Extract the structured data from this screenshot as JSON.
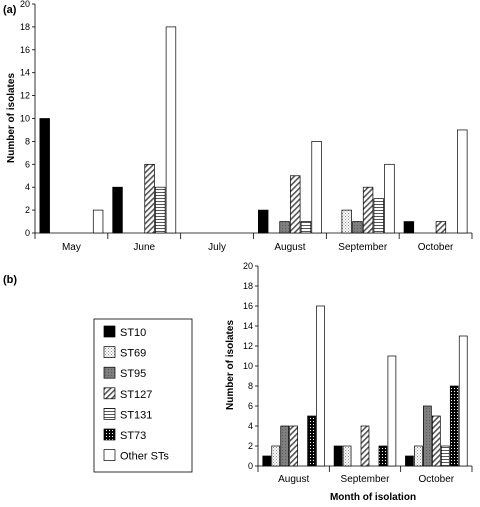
{
  "panel_a": {
    "label": "(a)",
    "ylabel": "Number of isolates",
    "ytick_labels": [
      "0",
      "2",
      "4",
      "6",
      "8",
      "10",
      "12",
      "14",
      "16",
      "18",
      "20"
    ],
    "categories": [
      "May",
      "June",
      "July",
      "August",
      "September",
      "October"
    ]
  },
  "panel_b": {
    "label": "(b)",
    "ylabel": "Number of isolates",
    "xlabel": "Month of isolation",
    "ytick_labels": [
      "0",
      "2",
      "4",
      "6",
      "8",
      "10",
      "12",
      "14",
      "16",
      "18",
      "20"
    ],
    "categories": [
      "August",
      "September",
      "October"
    ]
  },
  "legend": {
    "placement": "left of panel (b)",
    "entries": [
      "ST10",
      "ST69",
      "ST95",
      "ST127",
      "ST131",
      "ST73",
      "Other STs"
    ]
  },
  "colors": {
    "ST10": "#000000",
    "ST69": "#ffffff",
    "ST95": "#7f7f7f",
    "ST127": "#ffffff",
    "ST131": "#ffffff",
    "ST73": "#000000",
    "Other STs": "#ffffff"
  },
  "chart_data": [
    {
      "type": "bar",
      "title": "(a)",
      "xlabel": "",
      "ylabel": "Number of isolates",
      "ylim": [
        0,
        20
      ],
      "grid": false,
      "categories": [
        "May",
        "June",
        "July",
        "August",
        "September",
        "October"
      ],
      "series": [
        {
          "name": "ST10",
          "values": [
            10,
            4,
            0,
            2,
            0,
            1
          ]
        },
        {
          "name": "ST69",
          "values": [
            0,
            0,
            0,
            0,
            2,
            0
          ]
        },
        {
          "name": "ST95",
          "values": [
            0,
            0,
            0,
            1,
            1,
            0
          ]
        },
        {
          "name": "ST127",
          "values": [
            0,
            6,
            0,
            5,
            4,
            1
          ]
        },
        {
          "name": "ST131",
          "values": [
            0,
            4,
            0,
            1,
            3,
            0
          ]
        },
        {
          "name": "Other STs",
          "values": [
            2,
            18,
            0,
            8,
            6,
            9
          ]
        }
      ]
    },
    {
      "type": "bar",
      "title": "(b)",
      "xlabel": "Month of isolation",
      "ylabel": "Number of isolates",
      "ylim": [
        0,
        20
      ],
      "grid": false,
      "categories": [
        "August",
        "September",
        "October"
      ],
      "series": [
        {
          "name": "ST10",
          "values": [
            1,
            2,
            1
          ]
        },
        {
          "name": "ST69",
          "values": [
            2,
            2,
            2
          ]
        },
        {
          "name": "ST95",
          "values": [
            4,
            0,
            6
          ]
        },
        {
          "name": "ST127",
          "values": [
            4,
            4,
            5
          ]
        },
        {
          "name": "ST131",
          "values": [
            0,
            0,
            2
          ]
        },
        {
          "name": "ST73",
          "values": [
            5,
            2,
            8
          ]
        },
        {
          "name": "Other STs",
          "values": [
            16,
            11,
            13
          ]
        }
      ]
    }
  ]
}
